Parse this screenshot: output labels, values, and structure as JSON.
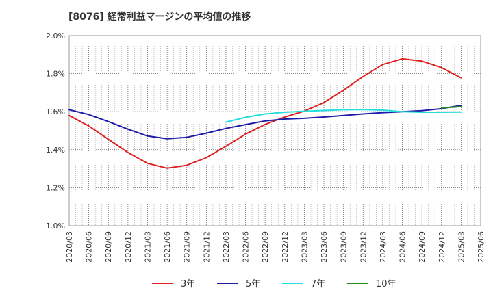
{
  "chart_data": {
    "type": "line",
    "title": "[8076]  経常利益マージンの平均値の推移",
    "xlabel": "",
    "ylabel": "",
    "x_ticks": [
      "2020/03",
      "2020/06",
      "2020/09",
      "2020/12",
      "2021/03",
      "2021/06",
      "2021/09",
      "2021/12",
      "2022/03",
      "2022/06",
      "2022/09",
      "2022/12",
      "2023/03",
      "2023/06",
      "2023/09",
      "2023/12",
      "2024/03",
      "2024/06",
      "2024/09",
      "2024/12",
      "2025/03",
      "2025/06"
    ],
    "y_ticks": [
      "1.0%",
      "1.2%",
      "1.4%",
      "1.6%",
      "1.8%",
      "2.0%"
    ],
    "ylim": [
      1.0,
      2.0
    ],
    "grid": true,
    "legend_position": "bottom",
    "series": [
      {
        "name": "3年",
        "color": "#dd1f1f",
        "x": [
          "2020/03",
          "2020/06",
          "2020/09",
          "2020/12",
          "2021/03",
          "2021/06",
          "2021/09",
          "2021/12",
          "2022/03",
          "2022/06",
          "2022/09",
          "2022/12",
          "2023/03",
          "2023/06",
          "2023/09",
          "2023/12",
          "2024/03",
          "2024/06",
          "2024/09",
          "2024/12",
          "2025/03"
        ],
        "values": [
          1.58,
          1.525,
          1.455,
          1.385,
          1.328,
          1.303,
          1.318,
          1.358,
          1.418,
          1.482,
          1.533,
          1.572,
          1.603,
          1.648,
          1.713,
          1.785,
          1.848,
          1.878,
          1.866,
          1.832,
          1.778
        ]
      },
      {
        "name": "5年",
        "color": "#1c1ca8",
        "x": [
          "2020/03",
          "2020/06",
          "2020/09",
          "2020/12",
          "2021/03",
          "2021/06",
          "2021/09",
          "2021/12",
          "2022/03",
          "2022/06",
          "2022/09",
          "2022/12",
          "2023/03",
          "2023/06",
          "2023/09",
          "2023/12",
          "2024/03",
          "2024/06",
          "2024/09",
          "2024/12",
          "2025/03"
        ],
        "values": [
          1.61,
          1.585,
          1.548,
          1.508,
          1.472,
          1.458,
          1.465,
          1.487,
          1.512,
          1.532,
          1.551,
          1.561,
          1.565,
          1.572,
          1.58,
          1.588,
          1.595,
          1.6,
          1.605,
          1.616,
          1.633
        ]
      },
      {
        "name": "7年",
        "color": "#22dddd",
        "x": [
          "2022/03",
          "2022/06",
          "2022/09",
          "2022/12",
          "2023/03",
          "2023/06",
          "2023/09",
          "2023/12",
          "2024/03",
          "2024/06",
          "2024/09",
          "2024/12",
          "2025/03"
        ],
        "values": [
          1.545,
          1.57,
          1.588,
          1.597,
          1.602,
          1.606,
          1.61,
          1.611,
          1.608,
          1.6,
          1.597,
          1.597,
          1.598
        ]
      },
      {
        "name": "10年",
        "color": "#228822",
        "x": [
          "2024/12",
          "2025/03"
        ],
        "values": [
          1.619,
          1.627
        ]
      }
    ]
  }
}
